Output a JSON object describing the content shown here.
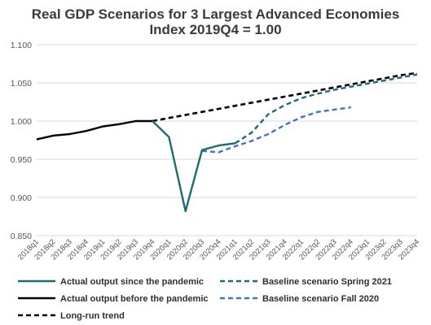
{
  "chart_data": {
    "type": "line",
    "title_line1": "Real GDP Scenarios for 3 Largest Advanced Economies",
    "title_line2": "Index 2019Q4 = 1.00",
    "xlabel": "",
    "ylabel": "",
    "ylim": [
      0.85,
      1.1
    ],
    "yticks": [
      "0.850",
      "0.900",
      "0.950",
      "1.000",
      "1.050",
      "1.100"
    ],
    "grid": "horizontal",
    "legend_position": "bottom",
    "categories": [
      "2018q1",
      "2018q2",
      "2018q3",
      "2018q4",
      "2019q1",
      "2019q2",
      "2019q3",
      "2019q4",
      "2020q1",
      "2020q2",
      "2020q3",
      "2020q4",
      "2021q1",
      "2021q2",
      "2021q3",
      "2021q4",
      "2022q1",
      "2022q2",
      "2022q3",
      "2022q4",
      "2023q1",
      "2023q2",
      "2023q3",
      "2023q4"
    ],
    "series": [
      {
        "name": "Actual output since the pandemic",
        "color": "#1b6b72",
        "dash": "solid",
        "values": [
          null,
          null,
          null,
          null,
          null,
          null,
          null,
          1.0,
          0.979,
          0.882,
          0.962,
          0.968,
          0.971,
          null,
          null,
          null,
          null,
          null,
          null,
          null,
          null,
          null,
          null,
          null
        ]
      },
      {
        "name": "Actual output before the pandemic",
        "color": "#000000",
        "dash": "solid",
        "values": [
          0.976,
          0.981,
          0.983,
          0.987,
          0.993,
          0.996,
          1.0,
          1.0,
          null,
          null,
          null,
          null,
          null,
          null,
          null,
          null,
          null,
          null,
          null,
          null,
          null,
          null,
          null,
          null
        ]
      },
      {
        "name": "Long-run trend",
        "color": "#000000",
        "dash": "dashed",
        "values": [
          null,
          null,
          null,
          null,
          null,
          null,
          null,
          1.0,
          1.004,
          1.008,
          1.012,
          1.016,
          1.02,
          1.024,
          1.028,
          1.032,
          1.036,
          1.04,
          1.044,
          1.048,
          1.052,
          1.056,
          1.06,
          1.063
        ]
      },
      {
        "name": "Baseline scenario Spring 2021",
        "color": "#1b6b72",
        "dash": "dashed",
        "values": [
          null,
          null,
          null,
          null,
          null,
          null,
          null,
          null,
          null,
          null,
          null,
          null,
          0.971,
          0.985,
          1.009,
          1.021,
          1.03,
          1.036,
          1.041,
          1.045,
          1.049,
          1.053,
          1.057,
          1.061
        ]
      },
      {
        "name": "Baseline scenario Fall 2020",
        "color": "#4472c4",
        "dash": "dashed",
        "values": [
          null,
          null,
          null,
          null,
          null,
          null,
          null,
          null,
          null,
          null,
          0.961,
          0.959,
          0.967,
          0.974,
          0.983,
          0.995,
          1.005,
          1.012,
          1.015,
          1.018,
          null,
          null,
          null,
          null
        ]
      }
    ]
  }
}
